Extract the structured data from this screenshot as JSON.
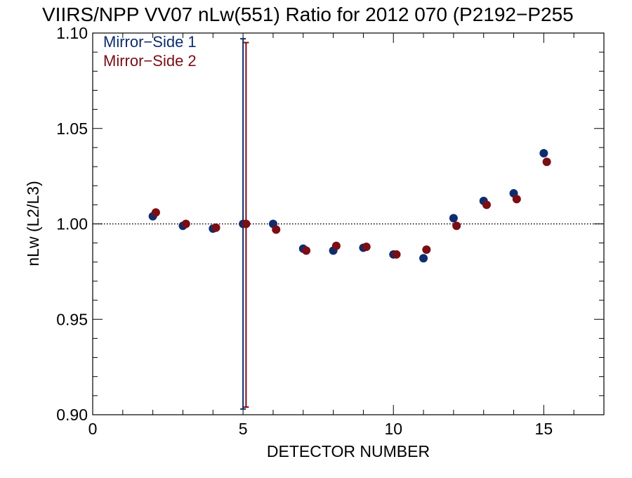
{
  "chart_data": {
    "type": "scatter",
    "title": "VIIRS/NPP VV07 nLw(551) Ratio for 2012 070 (P2192−P255",
    "xlabel": "DETECTOR NUMBER",
    "ylabel": "nLw (L2/L3)",
    "xlim": [
      0,
      17
    ],
    "ylim": [
      0.9,
      1.1
    ],
    "xticks": [
      0,
      5,
      10,
      15
    ],
    "xtick_labels": [
      "0",
      "5",
      "10",
      "15"
    ],
    "yticks": [
      0.9,
      0.95,
      1.0,
      1.05,
      1.1
    ],
    "ytick_labels": [
      "0.90",
      "0.95",
      "1.00",
      "1.05",
      "1.10"
    ],
    "x_minor_step": 1,
    "y_minor_step": 0.01,
    "reference_line": {
      "y": 1.0,
      "style": "dotted"
    },
    "grid": false,
    "legend_placement": "top-left",
    "series": [
      {
        "name": "Mirror−Side 1",
        "color": "#0d2d6e",
        "x": [
          2,
          3,
          4,
          5,
          6,
          7,
          8,
          9,
          10,
          11,
          12,
          13,
          14,
          15
        ],
        "values": [
          1.004,
          0.999,
          0.9975,
          1.0,
          1.0,
          0.987,
          0.986,
          0.9875,
          0.984,
          0.982,
          1.003,
          1.012,
          1.016,
          1.037
        ],
        "error_bar": {
          "x": 5,
          "low": 0.903,
          "high": 1.097
        }
      },
      {
        "name": "Mirror−Side 2",
        "color": "#7b0d15",
        "x": [
          2.1,
          3.1,
          4.1,
          5.1,
          6.1,
          7.1,
          8.1,
          9.1,
          10.1,
          11.1,
          12.1,
          13.1,
          14.1,
          15.1
        ],
        "values": [
          1.006,
          1.0,
          0.998,
          1.0,
          0.997,
          0.986,
          0.9885,
          0.988,
          0.984,
          0.9865,
          0.999,
          1.01,
          1.013,
          1.0325
        ],
        "error_bar": {
          "x": 5.1,
          "low": 0.904,
          "high": 1.095
        }
      }
    ]
  }
}
